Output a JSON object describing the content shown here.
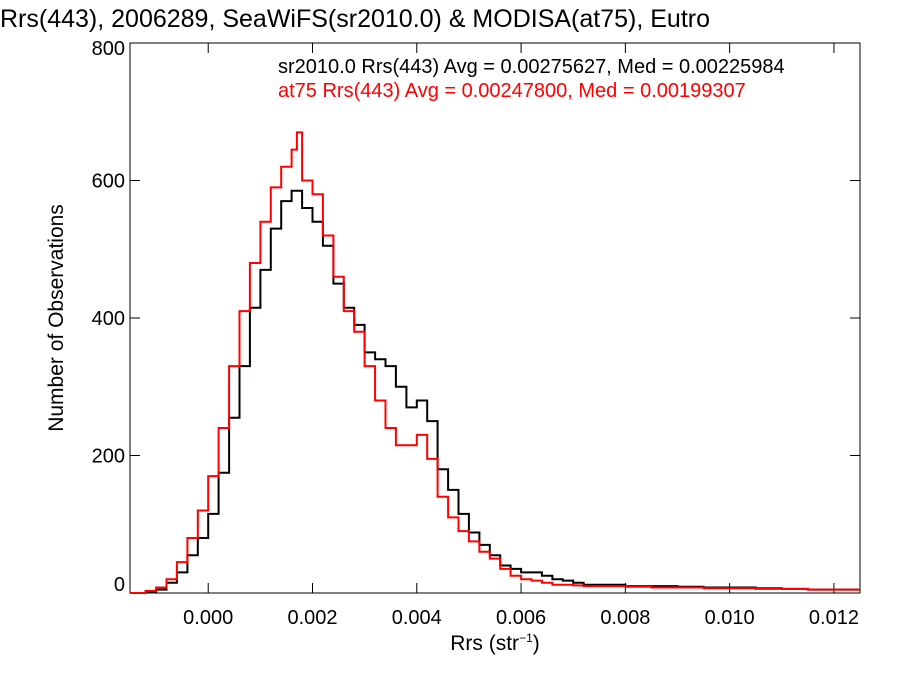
{
  "chart_data": {
    "type": "line",
    "step": true,
    "title": "Rrs(443), 2006289, SeaWiFS(sr2010.0) & MODISA(at75), Eutro",
    "xlabel": "Rrs (str",
    "xlabel_sup": "−1",
    "xlabel_close": ")",
    "ylabel": "Number of Observations",
    "xlim": [
      -0.0015,
      0.0125
    ],
    "ylim": [
      0,
      800
    ],
    "x_ticks": [
      0.0,
      0.002,
      0.004,
      0.006,
      0.008,
      0.01,
      0.012
    ],
    "x_tick_labels": [
      "0.000",
      "0.002",
      "0.004",
      "0.006",
      "0.008",
      "0.010",
      "0.012"
    ],
    "y_ticks": [
      0,
      200,
      400,
      600,
      800
    ],
    "y_tick_labels": [
      "0",
      "200",
      "400",
      "600",
      "800"
    ],
    "grid": false,
    "legend_placement": "top",
    "colors": {
      "sr2010": "#000000",
      "at75": "#ff0000"
    },
    "legend_lines": [
      "sr2010.0 Rrs(443) Avg = 0.00275627, Med = 0.00225984",
      "at75 Rrs(443) Avg = 0.00247800, Med = 0.00199307"
    ],
    "series": [
      {
        "key": "sr2010",
        "x": [
          -0.0015,
          -0.0012,
          -0.001,
          -0.0008,
          -0.0006,
          -0.0004,
          -0.0002,
          0.0,
          0.0002,
          0.0004,
          0.0006,
          0.0008,
          0.001,
          0.0012,
          0.0014,
          0.0016,
          0.0018,
          0.002,
          0.0022,
          0.0024,
          0.0026,
          0.0028,
          0.003,
          0.0032,
          0.0034,
          0.0036,
          0.0038,
          0.004,
          0.0042,
          0.0044,
          0.0046,
          0.0048,
          0.005,
          0.0052,
          0.0054,
          0.0056,
          0.0058,
          0.006,
          0.0062,
          0.0064,
          0.0066,
          0.0068,
          0.007,
          0.0072,
          0.0075,
          0.008,
          0.0085,
          0.009,
          0.0095,
          0.01,
          0.0105,
          0.011,
          0.0115,
          0.012,
          0.0125
        ],
        "y": [
          0,
          2,
          5,
          15,
          30,
          55,
          80,
          115,
          175,
          255,
          330,
          415,
          470,
          530,
          570,
          585,
          560,
          540,
          505,
          450,
          415,
          390,
          350,
          340,
          330,
          300,
          270,
          280,
          250,
          180,
          150,
          115,
          88,
          70,
          55,
          40,
          35,
          30,
          30,
          25,
          20,
          18,
          15,
          12,
          12,
          10,
          10,
          9,
          8,
          8,
          7,
          6,
          5,
          5,
          5
        ]
      },
      {
        "key": "at75",
        "x": [
          -0.0015,
          -0.0012,
          -0.001,
          -0.0008,
          -0.0006,
          -0.0004,
          -0.0002,
          0.0,
          0.0002,
          0.0004,
          0.0006,
          0.0008,
          0.001,
          0.0012,
          0.0014,
          0.0016,
          0.0017,
          0.0018,
          0.002,
          0.0022,
          0.0024,
          0.0026,
          0.0028,
          0.003,
          0.0032,
          0.0034,
          0.0036,
          0.0038,
          0.004,
          0.0042,
          0.0044,
          0.0046,
          0.0048,
          0.005,
          0.0052,
          0.0054,
          0.0056,
          0.0058,
          0.006,
          0.0062,
          0.0064,
          0.0066,
          0.0068,
          0.007,
          0.0072,
          0.0075,
          0.008,
          0.0085,
          0.009,
          0.0095,
          0.01,
          0.0105,
          0.011,
          0.0115,
          0.012,
          0.0125
        ],
        "y": [
          0,
          3,
          8,
          20,
          45,
          80,
          120,
          170,
          240,
          330,
          410,
          480,
          540,
          590,
          620,
          645,
          670,
          600,
          580,
          520,
          460,
          410,
          380,
          330,
          280,
          240,
          215,
          215,
          230,
          195,
          140,
          110,
          90,
          75,
          60,
          50,
          35,
          25,
          20,
          18,
          15,
          12,
          12,
          11,
          10,
          10,
          9,
          8,
          8,
          7,
          7,
          6,
          6,
          5,
          5,
          5
        ]
      }
    ]
  }
}
